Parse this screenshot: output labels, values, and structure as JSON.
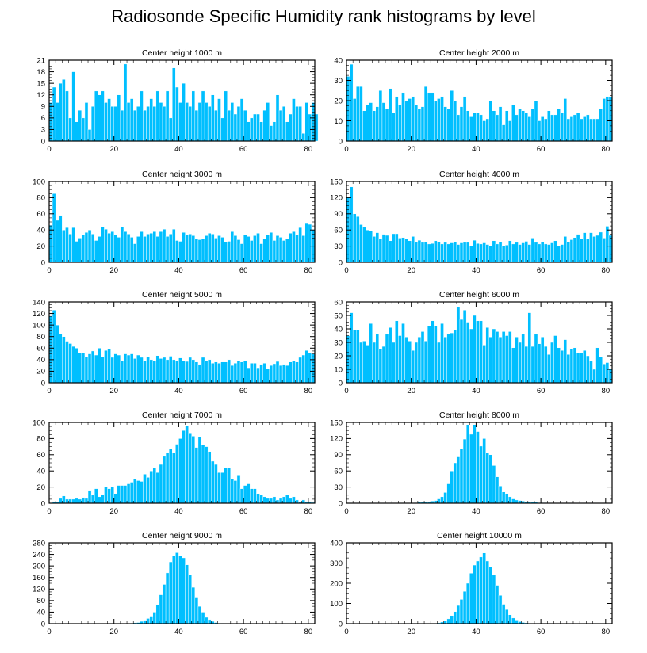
{
  "page": {
    "title": "Radiosonde Specific Humidity rank histograms by level"
  },
  "colors": {
    "bar": "#00bfff",
    "bar_outline": "#ffffff",
    "axis": "#000000"
  },
  "chart_data": [
    {
      "type": "bar",
      "title": "Center height 1000 m",
      "xlim": [
        0,
        82
      ],
      "ylim": [
        0,
        21
      ],
      "xticks": [
        0,
        20,
        40,
        60,
        80
      ],
      "yticks": [
        0,
        3,
        6,
        9,
        12,
        15,
        18,
        21
      ],
      "x_start": 0,
      "values": [
        10,
        14,
        10,
        15,
        16,
        13,
        6,
        18,
        5,
        8,
        6,
        10,
        3,
        9,
        13,
        12,
        13,
        10,
        11,
        9,
        9,
        12,
        8,
        20,
        10,
        11,
        8,
        9,
        13,
        8,
        9,
        11,
        9,
        13,
        10,
        9,
        13,
        6,
        19,
        14,
        10,
        15,
        10,
        9,
        13,
        8,
        10,
        13,
        10,
        9,
        12,
        8,
        11,
        6,
        13,
        8,
        10,
        7,
        9,
        11,
        8,
        5,
        6,
        7,
        7,
        5,
        8,
        10,
        4,
        5,
        12,
        8,
        9,
        5,
        7,
        11,
        9,
        9,
        2,
        10,
        7,
        10,
        7
      ]
    },
    {
      "type": "bar",
      "title": "Center height 2000 m",
      "xlim": [
        0,
        82
      ],
      "ylim": [
        0,
        40
      ],
      "xticks": [
        0,
        20,
        40,
        60,
        80
      ],
      "yticks": [
        0,
        10,
        20,
        30,
        40
      ],
      "x_start": 0,
      "values": [
        32,
        38,
        21,
        27,
        27,
        15,
        18,
        19,
        15,
        17,
        25,
        19,
        16,
        26,
        14,
        22,
        18,
        24,
        20,
        21,
        22,
        18,
        16,
        17,
        27,
        24,
        24,
        20,
        21,
        22,
        17,
        16,
        25,
        20,
        13,
        17,
        22,
        15,
        12,
        14,
        14,
        13,
        10,
        11,
        20,
        15,
        13,
        17,
        8,
        15,
        10,
        18,
        13,
        16,
        15,
        14,
        12,
        16,
        20,
        10,
        12,
        11,
        15,
        13,
        13,
        16,
        14,
        21,
        11,
        12,
        13,
        14,
        11,
        12,
        13,
        11,
        11,
        11,
        16,
        21,
        22,
        22
      ]
    },
    {
      "type": "bar",
      "title": "Center height 3000 m",
      "xlim": [
        0,
        82
      ],
      "ylim": [
        0,
        100
      ],
      "xticks": [
        0,
        20,
        40,
        60,
        80
      ],
      "yticks": [
        0,
        20,
        40,
        60,
        80,
        100
      ],
      "x_start": 0,
      "values": [
        46,
        85,
        52,
        58,
        40,
        43,
        35,
        43,
        26,
        30,
        34,
        37,
        40,
        35,
        27,
        32,
        44,
        41,
        36,
        38,
        34,
        31,
        44,
        38,
        35,
        31,
        23,
        32,
        38,
        32,
        35,
        36,
        38,
        32,
        38,
        41,
        32,
        35,
        41,
        27,
        26,
        37,
        34,
        35,
        33,
        29,
        28,
        29,
        33,
        36,
        35,
        30,
        33,
        31,
        25,
        26,
        38,
        33,
        28,
        23,
        34,
        32,
        27,
        33,
        36,
        23,
        29,
        34,
        37,
        27,
        33,
        31,
        27,
        29,
        36,
        38,
        34,
        43,
        33,
        48,
        47,
        40
      ]
    },
    {
      "type": "bar",
      "title": "Center height 4000 m",
      "xlim": [
        0,
        82
      ],
      "ylim": [
        0,
        150
      ],
      "xticks": [
        0,
        20,
        40,
        60,
        80
      ],
      "yticks": [
        0,
        30,
        60,
        90,
        120,
        150
      ],
      "x_start": 0,
      "values": [
        120,
        140,
        90,
        85,
        70,
        65,
        60,
        58,
        48,
        55,
        44,
        52,
        50,
        40,
        53,
        53,
        45,
        46,
        44,
        40,
        48,
        38,
        41,
        37,
        38,
        34,
        35,
        40,
        38,
        34,
        37,
        34,
        36,
        38,
        33,
        36,
        37,
        37,
        30,
        41,
        35,
        34,
        36,
        33,
        30,
        40,
        34,
        38,
        30,
        32,
        40,
        34,
        37,
        33,
        36,
        39,
        33,
        45,
        37,
        34,
        38,
        34,
        33,
        36,
        40,
        30,
        33,
        48,
        38,
        42,
        46,
        52,
        43,
        55,
        44,
        55,
        48,
        50,
        56,
        45,
        67,
        50
      ]
    },
    {
      "type": "bar",
      "title": "Center height 5000 m",
      "xlim": [
        0,
        82
      ],
      "ylim": [
        0,
        140
      ],
      "xticks": [
        0,
        20,
        40,
        60,
        80
      ],
      "yticks": [
        0,
        20,
        40,
        60,
        80,
        100,
        120,
        140
      ],
      "x_start": 0,
      "values": [
        115,
        126,
        100,
        85,
        80,
        72,
        68,
        63,
        60,
        52,
        52,
        45,
        50,
        55,
        48,
        60,
        45,
        56,
        58,
        44,
        50,
        48,
        38,
        50,
        48,
        50,
        42,
        48,
        44,
        38,
        45,
        40,
        38,
        47,
        42,
        44,
        40,
        46,
        40,
        38,
        43,
        38,
        37,
        44,
        40,
        36,
        32,
        44,
        38,
        40,
        34,
        36,
        34,
        36,
        36,
        40,
        30,
        34,
        38,
        36,
        38,
        26,
        34,
        34,
        26,
        32,
        34,
        24,
        30,
        33,
        37,
        30,
        32,
        30,
        36,
        38,
        36,
        44,
        48,
        56,
        52,
        50
      ]
    },
    {
      "type": "bar",
      "title": "Center height 6000 m",
      "xlim": [
        0,
        82
      ],
      "ylim": [
        0,
        60
      ],
      "xticks": [
        0,
        20,
        40,
        60,
        80
      ],
      "yticks": [
        0,
        10,
        20,
        30,
        40,
        50,
        60
      ],
      "x_start": 0,
      "values": [
        35,
        52,
        39,
        39,
        30,
        31,
        28,
        44,
        30,
        36,
        25,
        27,
        36,
        41,
        30,
        46,
        35,
        44,
        34,
        31,
        24,
        30,
        34,
        38,
        31,
        42,
        46,
        42,
        30,
        44,
        34,
        36,
        37,
        39,
        56,
        47,
        54,
        45,
        40,
        50,
        46,
        46,
        28,
        41,
        34,
        40,
        38,
        34,
        38,
        35,
        38,
        26,
        34,
        30,
        36,
        27,
        52,
        27,
        36,
        29,
        34,
        27,
        21,
        30,
        35,
        26,
        24,
        32,
        21,
        25,
        26,
        22,
        22,
        24,
        20,
        16,
        10,
        26,
        19,
        14,
        15,
        10
      ]
    },
    {
      "type": "bar",
      "title": "Center height 7000 m",
      "xlim": [
        0,
        82
      ],
      "ylim": [
        0,
        100
      ],
      "xticks": [
        0,
        20,
        40,
        60,
        80
      ],
      "yticks": [
        0,
        20,
        40,
        60,
        80,
        100
      ],
      "x_start": 0,
      "values": [
        0,
        2,
        2,
        6,
        9,
        5,
        5,
        5,
        6,
        5,
        7,
        6,
        16,
        10,
        18,
        8,
        11,
        20,
        18,
        20,
        12,
        22,
        22,
        22,
        24,
        26,
        30,
        28,
        27,
        36,
        32,
        40,
        44,
        38,
        48,
        58,
        62,
        67,
        62,
        73,
        80,
        90,
        96,
        86,
        83,
        69,
        82,
        72,
        70,
        64,
        52,
        48,
        38,
        38,
        44,
        44,
        30,
        28,
        34,
        18,
        22,
        24,
        18,
        18,
        12,
        10,
        8,
        6,
        6,
        8,
        4,
        6,
        8,
        10,
        6,
        8,
        4,
        2,
        4,
        2,
        2,
        1,
        0
      ]
    },
    {
      "type": "bar",
      "title": "Center height 8000 m",
      "xlim": [
        0,
        82
      ],
      "ylim": [
        0,
        150
      ],
      "xticks": [
        0,
        20,
        40,
        60,
        80
      ],
      "yticks": [
        0,
        30,
        60,
        90,
        120,
        150
      ],
      "x_start": 0,
      "values": [
        0,
        0,
        0,
        0,
        0,
        0,
        0,
        0,
        0,
        0,
        0,
        0,
        0,
        0,
        0,
        0,
        0,
        0,
        0,
        0,
        0,
        1,
        2,
        2,
        3,
        3,
        4,
        5,
        8,
        12,
        20,
        36,
        60,
        75,
        86,
        101,
        119,
        146,
        128,
        146,
        133,
        106,
        120,
        94,
        90,
        70,
        49,
        32,
        21,
        18,
        12,
        8,
        6,
        5,
        4,
        3,
        3,
        2,
        2,
        1,
        1,
        1,
        0,
        0,
        0,
        0,
        0,
        0,
        0,
        0,
        0,
        0,
        0,
        0,
        0,
        0,
        0,
        0,
        0,
        0,
        0,
        0
      ]
    },
    {
      "type": "bar",
      "title": "Center height 9000 m",
      "xlim": [
        0,
        82
      ],
      "ylim": [
        0,
        280
      ],
      "xticks": [
        0,
        20,
        40,
        60,
        80
      ],
      "yticks": [
        0,
        40,
        80,
        120,
        160,
        200,
        240,
        280
      ],
      "x_start": 0,
      "values": [
        0,
        0,
        0,
        0,
        0,
        0,
        0,
        0,
        0,
        0,
        0,
        0,
        0,
        0,
        0,
        0,
        0,
        0,
        0,
        0,
        0,
        0,
        0,
        0,
        0,
        2,
        3,
        4,
        8,
        12,
        18,
        26,
        40,
        66,
        100,
        136,
        176,
        214,
        234,
        246,
        236,
        228,
        204,
        170,
        126,
        92,
        60,
        40,
        22,
        14,
        8,
        4,
        2,
        2,
        1,
        1,
        0,
        0,
        0,
        0,
        0,
        0,
        0,
        0,
        0,
        0,
        0,
        0,
        0,
        0,
        0,
        0,
        0,
        0,
        0,
        0,
        0,
        0,
        0,
        0,
        0,
        0
      ]
    },
    {
      "type": "bar",
      "title": "Center height 10000 m",
      "xlim": [
        0,
        82
      ],
      "ylim": [
        0,
        400
      ],
      "xticks": [
        0,
        20,
        40,
        60,
        80
      ],
      "yticks": [
        0,
        100,
        200,
        300,
        400
      ],
      "x_start": 0,
      "values": [
        0,
        0,
        0,
        0,
        0,
        0,
        0,
        0,
        0,
        0,
        0,
        0,
        0,
        0,
        0,
        0,
        0,
        0,
        0,
        0,
        0,
        0,
        0,
        0,
        0,
        0,
        0,
        2,
        4,
        8,
        14,
        24,
        40,
        60,
        90,
        120,
        160,
        200,
        250,
        290,
        310,
        330,
        350,
        310,
        280,
        240,
        190,
        140,
        96,
        70,
        44,
        28,
        18,
        10,
        6,
        4,
        2,
        1,
        1,
        0,
        0,
        0,
        0,
        0,
        0,
        0,
        0,
        0,
        0,
        0,
        0,
        0,
        0,
        0,
        0,
        0,
        0,
        0,
        0,
        0,
        0,
        0
      ]
    }
  ]
}
